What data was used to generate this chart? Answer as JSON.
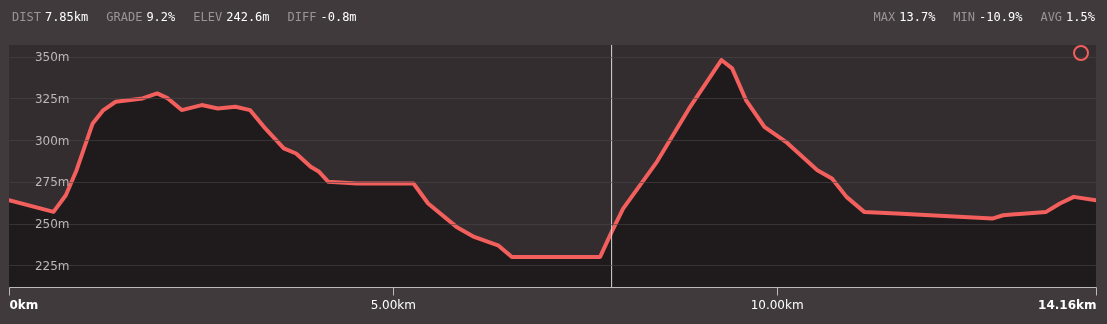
{
  "chart_data": {
    "type": "area",
    "annotations": [
      "DIST 7.85km",
      "GRADE 9.2%",
      "ELEV 242.6m",
      "DIFF -0.8m",
      "MAX 13.7%",
      "MIN -10.9%",
      "AVG 1.5%"
    ],
    "x": [
      0,
      0.58,
      0.74,
      0.88,
      1.09,
      1.23,
      1.39,
      1.74,
      1.93,
      2.07,
      2.25,
      2.51,
      2.72,
      2.95,
      3.14,
      3.32,
      3.58,
      3.74,
      3.93,
      4.04,
      4.16,
      4.53,
      5.27,
      5.46,
      5.83,
      6.06,
      6.37,
      6.55,
      7.17,
      7.7,
      7.84,
      8.0,
      8.44,
      8.86,
      9.28,
      9.42,
      9.6,
      9.84,
      10.12,
      10.53,
      10.72,
      10.91,
      11.14,
      11.56,
      12.81,
      12.95,
      13.51,
      13.69,
      13.87,
      14.16
    ],
    "series": [
      {
        "color": "#f25f5c",
        "values": [
          264,
          257,
          267,
          282,
          310,
          318,
          323,
          325,
          328,
          325,
          318,
          321,
          319,
          320,
          318,
          308,
          295,
          292,
          284,
          281,
          275,
          274,
          274,
          262,
          248,
          242,
          237,
          230,
          230,
          230,
          244,
          259,
          287,
          319,
          348,
          343,
          324,
          308,
          299,
          282,
          277,
          266,
          257,
          256,
          253,
          255,
          257,
          262,
          266,
          264
        ]
      }
    ],
    "xlim": [
      0,
      14.16
    ],
    "xticks": [
      {
        "value": 0,
        "label": "0km"
      },
      {
        "value": 5,
        "label": "5.00km"
      },
      {
        "value": 10,
        "label": "10.00km"
      },
      {
        "value": 14.16,
        "label": "14.16km"
      }
    ],
    "ylim": [
      212,
      357
    ],
    "yticks": [
      {
        "value": 225,
        "label": "225m"
      },
      {
        "value": 250,
        "label": "250m"
      },
      {
        "value": 275,
        "label": "275m"
      },
      {
        "value": 300,
        "label": "300m"
      },
      {
        "value": 325,
        "label": "325m"
      },
      {
        "value": 350,
        "label": "350m"
      }
    ],
    "grid": "y",
    "marker": "none",
    "line_style": "solid",
    "ref_lines": [
      {
        "axis": "x",
        "value": 7.85,
        "color": "#d8d8d8"
      }
    ]
  }
}
